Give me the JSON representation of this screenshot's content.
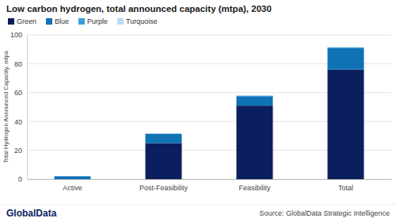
{
  "chart_data": {
    "type": "bar",
    "stacked": true,
    "title": "Low carbon hydrogen, total announced capacity (mtpa), 2030",
    "y_label": "Total Hydrogen Announced Capacity, mtpa",
    "categories": [
      "Active",
      "Post-Feasibility",
      "Feasibility",
      "Total"
    ],
    "series": [
      {
        "name": "Green",
        "color": "#0b1f5e",
        "values": [
          0,
          25,
          51,
          76
        ]
      },
      {
        "name": "Blue",
        "color": "#0e72b5",
        "values": [
          2,
          6.5,
          6.5,
          15
        ]
      },
      {
        "name": "Purple",
        "color": "#3aa0da",
        "values": [
          0,
          0,
          0.4,
          0.4
        ]
      },
      {
        "name": "Turquoise",
        "color": "#b7dcf2",
        "values": [
          0,
          0,
          0,
          0
        ]
      }
    ],
    "ylim": [
      0,
      100
    ],
    "yticks": [
      0,
      20,
      40,
      60,
      80,
      100
    ],
    "grid": true,
    "legend": "top-left",
    "brand": "GlobalData",
    "source": "Source: GlobalData Strategic Intelligence"
  }
}
